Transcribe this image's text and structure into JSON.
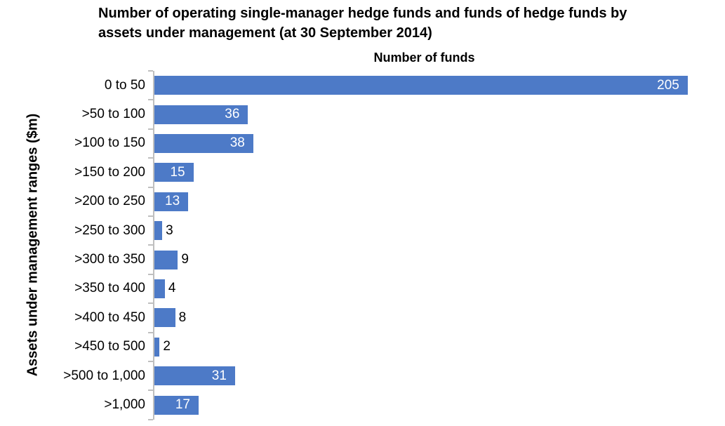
{
  "header": {
    "title_lines": [
      "Number of operating single-manager hedge funds and funds of hedge funds by",
      "assets under management (at 30 September 2014)"
    ]
  },
  "chart_data": {
    "type": "bar",
    "orientation": "horizontal",
    "title": "Number of operating single-manager hedge funds and funds of hedge funds by assets under management (at 30 September 2014)",
    "axis_header": "Number of funds",
    "xlabel": "Number of funds",
    "ylabel": "Assets under management ranges ($m)",
    "categories": [
      "0 to 50",
      ">50 to 100",
      ">100 to 150",
      ">150 to 200",
      ">200 to 250",
      ">250 to 300",
      ">300 to 350",
      ">350 to 400",
      ">400 to 450",
      ">450 to 500",
      ">500 to 1,000",
      ">1,000"
    ],
    "values": [
      205,
      36,
      38,
      15,
      13,
      3,
      9,
      4,
      8,
      2,
      31,
      17
    ],
    "data_label_positions": [
      "inside",
      "inside",
      "inside",
      "inside",
      "inside",
      "outside",
      "outside",
      "outside",
      "outside",
      "outside",
      "inside",
      "inside"
    ],
    "xlim": [
      0,
      208
    ],
    "grid": false,
    "legend": false,
    "colors": {
      "bar": "#4d7ac7",
      "axis": "#bfbfbf",
      "inside_label": "#ffffff",
      "outside_label": "#000000",
      "text": "#000000"
    }
  }
}
